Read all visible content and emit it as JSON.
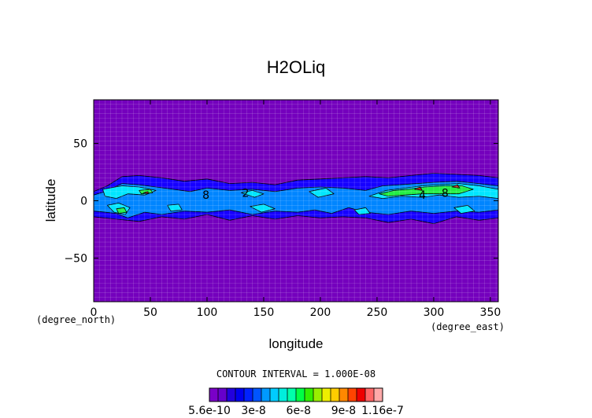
{
  "chart_data": {
    "type": "heatmap",
    "title": "H2OLiq",
    "xlabel": "longitude",
    "ylabel": "latitude",
    "x_unit": "(degree_north)",
    "x_unit_right": "(degree_east)",
    "xlim": [
      0,
      357
    ],
    "ylim": [
      -88,
      88
    ],
    "xticks": [
      "0",
      "50",
      "100",
      "150",
      "200",
      "250",
      "300",
      "350"
    ],
    "xtick_values": [
      0,
      50,
      100,
      150,
      200,
      250,
      300,
      350
    ],
    "yticks": [
      "50",
      "0",
      "−50"
    ],
    "ytick_values": [
      50,
      0,
      -50
    ],
    "grid": true,
    "contour_interval_text": "CONTOUR INTERVAL = 1.000E-08",
    "contour_labels": [
      {
        "text": "8",
        "x": 99,
        "y": 5
      },
      {
        "text": "2",
        "x": 134,
        "y": 7
      },
      {
        "text": "4",
        "x": 290,
        "y": 5
      },
      {
        "text": "8",
        "x": 310,
        "y": 7
      }
    ],
    "colorbar": {
      "min": 5.6e-10,
      "max": 1.16e-07,
      "tick_labels": [
        "5.6e-10",
        "3e-8",
        "6e-8",
        "9e-8",
        "1.16e-7"
      ],
      "tick_values": [
        5.6e-10,
        3e-08,
        6e-08,
        9e-08,
        1.16e-07
      ],
      "colors": [
        "#7a00c8",
        "#6600cc",
        "#2200dd",
        "#0000ee",
        "#0022ff",
        "#0055ff",
        "#0099ff",
        "#00ccff",
        "#00eedd",
        "#00ffaa",
        "#00ff44",
        "#33ee00",
        "#99ee00",
        "#eeee00",
        "#ffcc00",
        "#ff8800",
        "#ff4400",
        "#ee0000",
        "#ff6666",
        "#ffaaaa"
      ]
    },
    "field_levels": {
      "background": "#7400bd",
      "low": "#1600ff",
      "mid": "#0085ff",
      "high": "#00e6ff",
      "peak": "#22ee44",
      "extreme": "#b42a18"
    },
    "regions": [
      {
        "level": "low",
        "pts": [
          [
            0,
            8
          ],
          [
            12,
            13
          ],
          [
            25,
            21
          ],
          [
            40,
            22
          ],
          [
            60,
            20
          ],
          [
            80,
            17
          ],
          [
            100,
            19
          ],
          [
            120,
            15
          ],
          [
            140,
            16
          ],
          [
            160,
            14
          ],
          [
            180,
            18
          ],
          [
            200,
            19
          ],
          [
            220,
            20
          ],
          [
            240,
            21
          ],
          [
            260,
            20
          ],
          [
            280,
            22
          ],
          [
            300,
            24
          ],
          [
            320,
            23
          ],
          [
            340,
            22
          ],
          [
            357,
            20
          ],
          [
            357,
            -15
          ],
          [
            340,
            -17
          ],
          [
            320,
            -14
          ],
          [
            300,
            -20
          ],
          [
            280,
            -16
          ],
          [
            260,
            -19
          ],
          [
            240,
            -15
          ],
          [
            220,
            -14
          ],
          [
            200,
            -15
          ],
          [
            180,
            -13
          ],
          [
            160,
            -16
          ],
          [
            140,
            -13
          ],
          [
            120,
            -17
          ],
          [
            100,
            -12
          ],
          [
            80,
            -16
          ],
          [
            60,
            -14
          ],
          [
            40,
            -18
          ],
          [
            20,
            -16
          ],
          [
            0,
            -14
          ]
        ]
      },
      {
        "level": "mid",
        "pts": [
          [
            0,
            5
          ],
          [
            10,
            8
          ],
          [
            25,
            15
          ],
          [
            40,
            14
          ],
          [
            55,
            12
          ],
          [
            70,
            10
          ],
          [
            85,
            8
          ],
          [
            100,
            11
          ],
          [
            120,
            9
          ],
          [
            140,
            10
          ],
          [
            160,
            8
          ],
          [
            180,
            11
          ],
          [
            200,
            12
          ],
          [
            220,
            11
          ],
          [
            240,
            9
          ],
          [
            255,
            13
          ],
          [
            270,
            14
          ],
          [
            285,
            15
          ],
          [
            300,
            16
          ],
          [
            320,
            17
          ],
          [
            340,
            15
          ],
          [
            357,
            13
          ],
          [
            357,
            -8
          ],
          [
            340,
            -10
          ],
          [
            320,
            -9
          ],
          [
            300,
            -11
          ],
          [
            280,
            -9
          ],
          [
            260,
            -12
          ],
          [
            240,
            -10
          ],
          [
            225,
            -6
          ],
          [
            210,
            -11
          ],
          [
            195,
            -8
          ],
          [
            180,
            -10
          ],
          [
            160,
            -9
          ],
          [
            140,
            -12
          ],
          [
            120,
            -8
          ],
          [
            100,
            -10
          ],
          [
            80,
            -9
          ],
          [
            60,
            -12
          ],
          [
            45,
            -10
          ],
          [
            30,
            -15
          ],
          [
            20,
            -11
          ],
          [
            0,
            -9
          ]
        ]
      },
      {
        "level": "high",
        "pts": [
          [
            8,
            10
          ],
          [
            25,
            13
          ],
          [
            40,
            12
          ],
          [
            55,
            9
          ],
          [
            45,
            5
          ],
          [
            30,
            6
          ],
          [
            20,
            2
          ],
          [
            10,
            4
          ]
        ]
      },
      {
        "level": "high",
        "pts": [
          [
            12,
            -4
          ],
          [
            22,
            -2
          ],
          [
            32,
            -6
          ],
          [
            28,
            -12
          ],
          [
            18,
            -10
          ]
        ]
      },
      {
        "level": "high",
        "pts": [
          [
            65,
            -4
          ],
          [
            75,
            -3
          ],
          [
            78,
            -8
          ],
          [
            68,
            -9
          ]
        ]
      },
      {
        "level": "high",
        "pts": [
          [
            130,
            7
          ],
          [
            140,
            9
          ],
          [
            150,
            6
          ],
          [
            142,
            3
          ]
        ]
      },
      {
        "level": "high",
        "pts": [
          [
            138,
            -5
          ],
          [
            150,
            -3
          ],
          [
            160,
            -7
          ],
          [
            148,
            -10
          ]
        ]
      },
      {
        "level": "high",
        "pts": [
          [
            190,
            8
          ],
          [
            205,
            11
          ],
          [
            212,
            6
          ],
          [
            198,
            3
          ]
        ]
      },
      {
        "level": "high",
        "pts": [
          [
            230,
            -8
          ],
          [
            240,
            -6
          ],
          [
            244,
            -11
          ],
          [
            234,
            -12
          ]
        ]
      },
      {
        "level": "high",
        "pts": [
          [
            243,
            4
          ],
          [
            258,
            9
          ],
          [
            275,
            11
          ],
          [
            290,
            13
          ],
          [
            305,
            14
          ],
          [
            322,
            15
          ],
          [
            340,
            13
          ],
          [
            357,
            10
          ],
          [
            357,
            2
          ],
          [
            340,
            4
          ],
          [
            322,
            3
          ],
          [
            305,
            5
          ],
          [
            290,
            3
          ],
          [
            272,
            4
          ],
          [
            255,
            2
          ]
        ]
      },
      {
        "level": "high",
        "pts": [
          [
            318,
            -6
          ],
          [
            330,
            -4
          ],
          [
            336,
            -9
          ],
          [
            324,
            -11
          ]
        ]
      },
      {
        "level": "peak",
        "pts": [
          [
            20,
            -7
          ],
          [
            27,
            -6
          ],
          [
            29,
            -10
          ],
          [
            22,
            -11
          ]
        ]
      },
      {
        "level": "peak",
        "pts": [
          [
            40,
            9
          ],
          [
            50,
            10
          ],
          [
            52,
            7
          ],
          [
            42,
            6
          ]
        ]
      },
      {
        "level": "peak",
        "pts": [
          [
            252,
            6
          ],
          [
            265,
            9
          ],
          [
            278,
            10
          ],
          [
            292,
            12
          ],
          [
            310,
            13
          ],
          [
            325,
            13
          ],
          [
            335,
            10
          ],
          [
            322,
            6
          ],
          [
            305,
            6
          ],
          [
            290,
            6
          ],
          [
            275,
            5
          ],
          [
            260,
            4
          ]
        ]
      },
      {
        "level": "extreme",
        "pts": [
          [
            283,
            10
          ],
          [
            288,
            12
          ],
          [
            290,
            9
          ]
        ]
      },
      {
        "level": "extreme",
        "pts": [
          [
            316,
            12
          ],
          [
            321,
            14
          ],
          [
            323,
            11
          ]
        ]
      },
      {
        "level": "extreme",
        "pts": [
          [
            44,
            7
          ],
          [
            48,
            8
          ],
          [
            48,
            6
          ]
        ]
      }
    ]
  }
}
